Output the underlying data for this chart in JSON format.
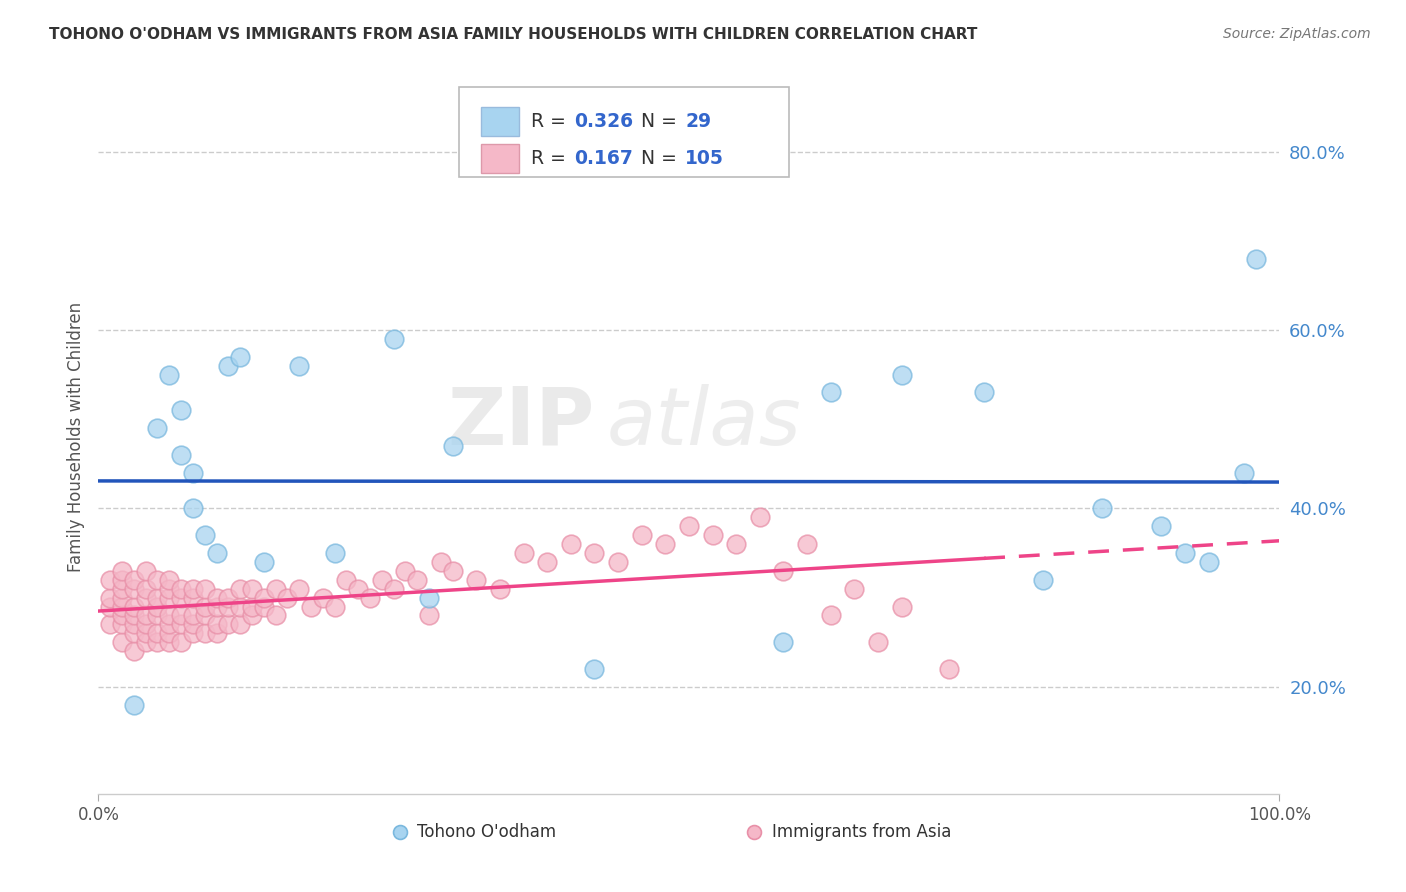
{
  "title": "TOHONO O'ODHAM VS IMMIGRANTS FROM ASIA FAMILY HOUSEHOLDS WITH CHILDREN CORRELATION CHART",
  "source": "Source: ZipAtlas.com",
  "ylabel": "Family Households with Children",
  "watermark": "ZIPatlas",
  "xlim": [
    0.0,
    1.0
  ],
  "ylim": [
    0.08,
    0.88
  ],
  "ytick_vals": [
    0.2,
    0.4,
    0.6,
    0.8
  ],
  "ytick_labels": [
    "20.0%",
    "40.0%",
    "60.0%",
    "80.0%"
  ],
  "xtick_vals": [
    0.0,
    1.0
  ],
  "xtick_labels": [
    "0.0%",
    "100.0%"
  ],
  "legend_r1": "0.326",
  "legend_n1": "29",
  "legend_r2": "0.167",
  "legend_n2": "105",
  "blue_color": "#a8d4f0",
  "blue_edge": "#7ab8de",
  "pink_color": "#f5b8c8",
  "pink_edge": "#e890a8",
  "trend_blue": "#2255bb",
  "trend_pink": "#ee4488",
  "blue_scatter_x": [
    0.03,
    0.05,
    0.06,
    0.07,
    0.07,
    0.08,
    0.08,
    0.09,
    0.1,
    0.11,
    0.12,
    0.14,
    0.17,
    0.2,
    0.25,
    0.28,
    0.3,
    0.42,
    0.58,
    0.62,
    0.68,
    0.75,
    0.8,
    0.85,
    0.9,
    0.92,
    0.94,
    0.97,
    0.98
  ],
  "blue_scatter_y": [
    0.18,
    0.49,
    0.55,
    0.51,
    0.46,
    0.44,
    0.4,
    0.37,
    0.35,
    0.56,
    0.57,
    0.34,
    0.56,
    0.35,
    0.59,
    0.3,
    0.47,
    0.22,
    0.25,
    0.53,
    0.55,
    0.53,
    0.32,
    0.4,
    0.38,
    0.35,
    0.34,
    0.44,
    0.68
  ],
  "pink_scatter_x": [
    0.01,
    0.01,
    0.01,
    0.01,
    0.02,
    0.02,
    0.02,
    0.02,
    0.02,
    0.02,
    0.02,
    0.02,
    0.03,
    0.03,
    0.03,
    0.03,
    0.03,
    0.03,
    0.03,
    0.04,
    0.04,
    0.04,
    0.04,
    0.04,
    0.04,
    0.04,
    0.05,
    0.05,
    0.05,
    0.05,
    0.05,
    0.05,
    0.06,
    0.06,
    0.06,
    0.06,
    0.06,
    0.06,
    0.06,
    0.07,
    0.07,
    0.07,
    0.07,
    0.07,
    0.08,
    0.08,
    0.08,
    0.08,
    0.08,
    0.09,
    0.09,
    0.09,
    0.09,
    0.1,
    0.1,
    0.1,
    0.1,
    0.11,
    0.11,
    0.11,
    0.12,
    0.12,
    0.12,
    0.13,
    0.13,
    0.13,
    0.14,
    0.14,
    0.15,
    0.15,
    0.16,
    0.17,
    0.18,
    0.19,
    0.2,
    0.21,
    0.22,
    0.23,
    0.24,
    0.25,
    0.26,
    0.27,
    0.28,
    0.29,
    0.3,
    0.32,
    0.34,
    0.36,
    0.38,
    0.4,
    0.42,
    0.44,
    0.46,
    0.48,
    0.5,
    0.52,
    0.54,
    0.56,
    0.58,
    0.6,
    0.62,
    0.64,
    0.66,
    0.68,
    0.72
  ],
  "pink_scatter_y": [
    0.27,
    0.29,
    0.3,
    0.32,
    0.25,
    0.27,
    0.28,
    0.29,
    0.3,
    0.31,
    0.32,
    0.33,
    0.24,
    0.26,
    0.27,
    0.28,
    0.29,
    0.31,
    0.32,
    0.25,
    0.26,
    0.27,
    0.28,
    0.3,
    0.31,
    0.33,
    0.25,
    0.26,
    0.28,
    0.29,
    0.3,
    0.32,
    0.25,
    0.26,
    0.27,
    0.28,
    0.3,
    0.31,
    0.32,
    0.25,
    0.27,
    0.28,
    0.3,
    0.31,
    0.26,
    0.27,
    0.28,
    0.3,
    0.31,
    0.26,
    0.28,
    0.29,
    0.31,
    0.26,
    0.27,
    0.29,
    0.3,
    0.27,
    0.29,
    0.3,
    0.27,
    0.29,
    0.31,
    0.28,
    0.29,
    0.31,
    0.29,
    0.3,
    0.28,
    0.31,
    0.3,
    0.31,
    0.29,
    0.3,
    0.29,
    0.32,
    0.31,
    0.3,
    0.32,
    0.31,
    0.33,
    0.32,
    0.28,
    0.34,
    0.33,
    0.32,
    0.31,
    0.35,
    0.34,
    0.36,
    0.35,
    0.34,
    0.37,
    0.36,
    0.38,
    0.37,
    0.36,
    0.39,
    0.33,
    0.36,
    0.28,
    0.31,
    0.25,
    0.29,
    0.22
  ]
}
